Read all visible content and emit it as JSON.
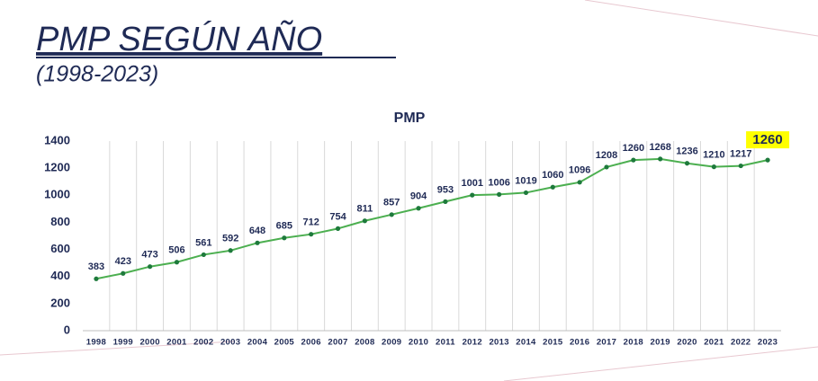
{
  "title": "PMP SEGÚN AÑO",
  "subtitle": "(1998-2023)",
  "chart_data": {
    "type": "line",
    "title": "PMP",
    "categories": [
      "1998",
      "1999",
      "2000",
      "2001",
      "2002",
      "2003",
      "2004",
      "2005",
      "2006",
      "2007",
      "2008",
      "2009",
      "2010",
      "2011",
      "2012",
      "2013",
      "2014",
      "2015",
      "2016",
      "2017",
      "2018",
      "2019",
      "2020",
      "2021",
      "2022",
      "2023"
    ],
    "values": [
      383,
      423,
      473,
      506,
      561,
      592,
      648,
      685,
      712,
      754,
      811,
      857,
      904,
      953,
      1001,
      1006,
      1019,
      1060,
      1096,
      1208,
      1260,
      1268,
      1236,
      1210,
      1217,
      1260
    ],
    "color": "#4caf50",
    "marker_color": "#1e7a3c",
    "ylim": [
      0,
      1400
    ],
    "yticks": [
      0,
      200,
      400,
      600,
      800,
      1000,
      1200,
      1400
    ],
    "grid": true
  }
}
